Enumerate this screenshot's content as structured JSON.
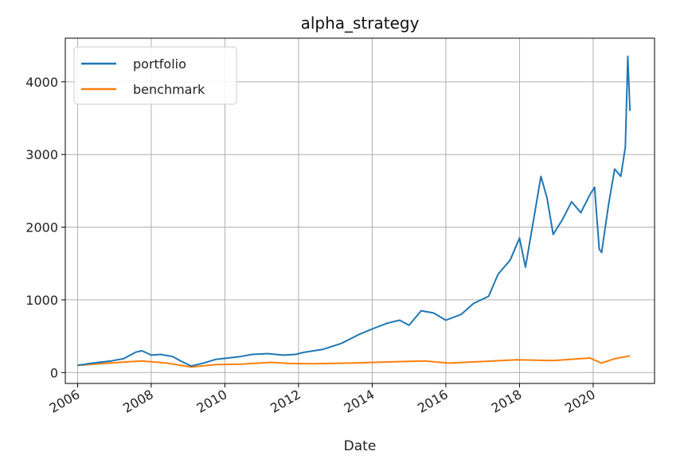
{
  "chart_data": {
    "type": "line",
    "title": "alpha_strategy",
    "xlabel": "Date",
    "ylabel": "",
    "xlim": [
      "2005-09-01",
      "2021-09-01"
    ],
    "ylim": [
      -150,
      4600
    ],
    "x_ticks": [
      "2006",
      "2008",
      "2010",
      "2012",
      "2014",
      "2016",
      "2018",
      "2020"
    ],
    "y_ticks": [
      0,
      1000,
      2000,
      3000,
      4000
    ],
    "grid": true,
    "legend_position": "top-left",
    "series": [
      {
        "name": "portfolio",
        "color": "#1f77b4",
        "points": [
          [
            "2006-01-01",
            100
          ],
          [
            "2006-06-01",
            130
          ],
          [
            "2006-12-01",
            160
          ],
          [
            "2007-04-01",
            190
          ],
          [
            "2007-08-01",
            280
          ],
          [
            "2007-10-01",
            300
          ],
          [
            "2008-01-01",
            240
          ],
          [
            "2008-04-01",
            250
          ],
          [
            "2008-08-01",
            220
          ],
          [
            "2008-11-01",
            150
          ],
          [
            "2009-02-01",
            90
          ],
          [
            "2009-06-01",
            130
          ],
          [
            "2009-10-01",
            180
          ],
          [
            "2010-02-01",
            200
          ],
          [
            "2010-06-01",
            220
          ],
          [
            "2010-10-01",
            250
          ],
          [
            "2011-03-01",
            260
          ],
          [
            "2011-08-01",
            240
          ],
          [
            "2011-12-01",
            250
          ],
          [
            "2012-03-01",
            280
          ],
          [
            "2012-09-01",
            320
          ],
          [
            "2013-03-01",
            400
          ],
          [
            "2013-09-01",
            530
          ],
          [
            "2014-01-01",
            600
          ],
          [
            "2014-06-01",
            680
          ],
          [
            "2014-10-01",
            720
          ],
          [
            "2015-01-01",
            650
          ],
          [
            "2015-05-01",
            850
          ],
          [
            "2015-09-01",
            820
          ],
          [
            "2016-01-01",
            720
          ],
          [
            "2016-06-01",
            800
          ],
          [
            "2016-10-01",
            950
          ],
          [
            "2017-03-01",
            1050
          ],
          [
            "2017-06-01",
            1350
          ],
          [
            "2017-10-01",
            1550
          ],
          [
            "2018-01-01",
            1850
          ],
          [
            "2018-03-01",
            1450
          ],
          [
            "2018-06-01",
            2200
          ],
          [
            "2018-08-01",
            2700
          ],
          [
            "2018-10-01",
            2400
          ],
          [
            "2018-12-01",
            1900
          ],
          [
            "2019-03-01",
            2100
          ],
          [
            "2019-06-01",
            2350
          ],
          [
            "2019-09-01",
            2200
          ],
          [
            "2019-12-01",
            2450
          ],
          [
            "2020-01-15",
            2550
          ],
          [
            "2020-03-01",
            1700
          ],
          [
            "2020-03-25",
            1650
          ],
          [
            "2020-06-01",
            2300
          ],
          [
            "2020-08-01",
            2800
          ],
          [
            "2020-10-01",
            2700
          ],
          [
            "2020-11-15",
            3100
          ],
          [
            "2020-12-10",
            4350
          ],
          [
            "2020-12-31",
            3600
          ]
        ]
      },
      {
        "name": "benchmark",
        "color": "#ff7f0e",
        "points": [
          [
            "2006-01-01",
            100
          ],
          [
            "2007-06-01",
            150
          ],
          [
            "2007-10-01",
            160
          ],
          [
            "2008-06-01",
            130
          ],
          [
            "2009-02-01",
            75
          ],
          [
            "2009-10-01",
            110
          ],
          [
            "2010-06-01",
            115
          ],
          [
            "2011-04-01",
            140
          ],
          [
            "2011-10-01",
            125
          ],
          [
            "2012-06-01",
            120
          ],
          [
            "2013-06-01",
            130
          ],
          [
            "2014-06-01",
            145
          ],
          [
            "2015-06-01",
            160
          ],
          [
            "2016-02-01",
            130
          ],
          [
            "2016-12-01",
            150
          ],
          [
            "2017-12-01",
            175
          ],
          [
            "2018-12-01",
            165
          ],
          [
            "2019-12-01",
            200
          ],
          [
            "2020-03-23",
            130
          ],
          [
            "2020-08-01",
            190
          ],
          [
            "2020-12-31",
            230
          ]
        ]
      }
    ]
  }
}
